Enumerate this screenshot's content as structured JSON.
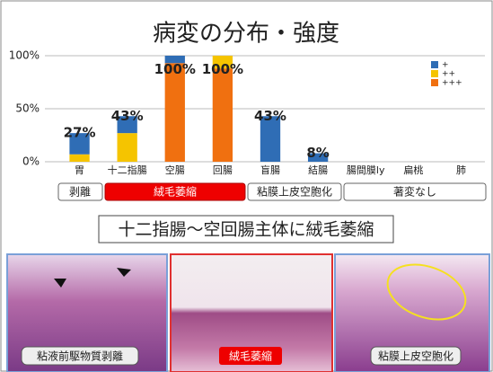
{
  "chart_data": {
    "type": "bar",
    "stacked": true,
    "title": "病変の分布・強度",
    "categories": [
      "胃",
      "十二指腸",
      "空腸",
      "回腸",
      "盲腸",
      "結腸",
      "腸間膜ly",
      "扁桃",
      "肺"
    ],
    "series": [
      {
        "name": "+++",
        "color": "#f07010",
        "values": [
          0,
          0,
          93,
          88,
          0,
          0,
          0,
          0,
          0
        ]
      },
      {
        "name": "++",
        "color": "#f5c400",
        "values": [
          7,
          27,
          0,
          12,
          0,
          0,
          0,
          0,
          0
        ]
      },
      {
        "name": "+",
        "color": "#2f6db5",
        "values": [
          20,
          16,
          7,
          0,
          43,
          8,
          0,
          0,
          0
        ]
      }
    ],
    "total_labels": [
      "27%",
      "43%",
      "100%",
      "100%",
      "43%",
      "8%",
      null,
      null,
      null
    ],
    "ylim": [
      0,
      100
    ],
    "yticks": [
      {
        "value": 0,
        "label": "0%"
      },
      {
        "value": 50,
        "label": "50%"
      },
      {
        "value": 100,
        "label": "100%"
      }
    ],
    "grid": true,
    "legend": "top-right"
  },
  "groups": [
    "剥離",
    "絨毛萎縮",
    "粘膜上皮空胞化",
    "著変なし"
  ],
  "summary": "十二指腸～空回腸主体に絨毛萎縮",
  "images": [
    {
      "caption": "粘液前駆物質剥離"
    },
    {
      "caption": "絨毛萎縮"
    },
    {
      "caption": "粘膜上皮空胞化"
    }
  ]
}
